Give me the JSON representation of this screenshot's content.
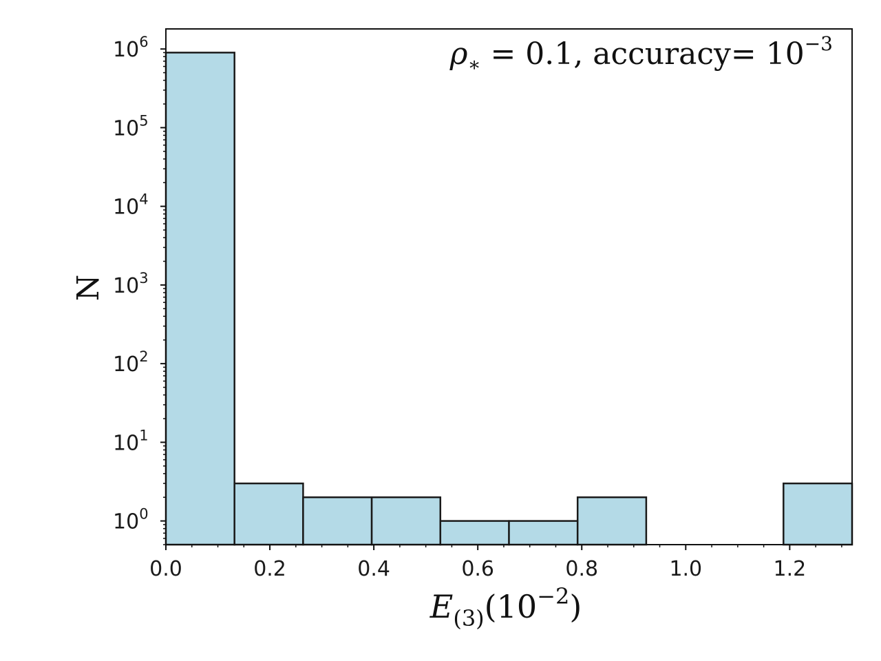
{
  "chart_data": {
    "type": "bar",
    "title": "",
    "annotation": {
      "symbol": "ρ",
      "subscript": "∗",
      "equals_value": " = 0.1, accuracy= 10",
      "exponent": "−3"
    },
    "xlabel": {
      "var": "E",
      "sub": "(3)",
      "paren_open": "(10",
      "sup": "−2",
      "paren_close": ")"
    },
    "ylabel": "N",
    "y_scale": "log",
    "xlim": [
      0.0,
      1.32
    ],
    "ylim": [
      0.5,
      1800000
    ],
    "bin_edges": [
      0.0,
      0.132,
      0.264,
      0.396,
      0.528,
      0.66,
      0.792,
      0.924,
      1.056,
      1.188,
      1.32
    ],
    "counts": [
      900000,
      3,
      2,
      2,
      1,
      1,
      2,
      0,
      0,
      3
    ],
    "bar_color": "#b4dae7",
    "edge_color": "#1a1a1a",
    "x_ticks": [
      {
        "value": 0.0,
        "label": "0.0"
      },
      {
        "value": 0.2,
        "label": "0.2"
      },
      {
        "value": 0.4,
        "label": "0.4"
      },
      {
        "value": 0.6,
        "label": "0.6"
      },
      {
        "value": 0.8,
        "label": "0.8"
      },
      {
        "value": 1.0,
        "label": "1.0"
      },
      {
        "value": 1.2,
        "label": "1.2"
      }
    ],
    "y_ticks": [
      {
        "exp": 0,
        "base": "10",
        "sup": "0"
      },
      {
        "exp": 1,
        "base": "10",
        "sup": "1"
      },
      {
        "exp": 2,
        "base": "10",
        "sup": "2"
      },
      {
        "exp": 3,
        "base": "10",
        "sup": "3"
      },
      {
        "exp": 4,
        "base": "10",
        "sup": "4"
      },
      {
        "exp": 5,
        "base": "10",
        "sup": "5"
      },
      {
        "exp": 6,
        "base": "10",
        "sup": "6"
      }
    ],
    "grid": false,
    "legend": "none"
  }
}
